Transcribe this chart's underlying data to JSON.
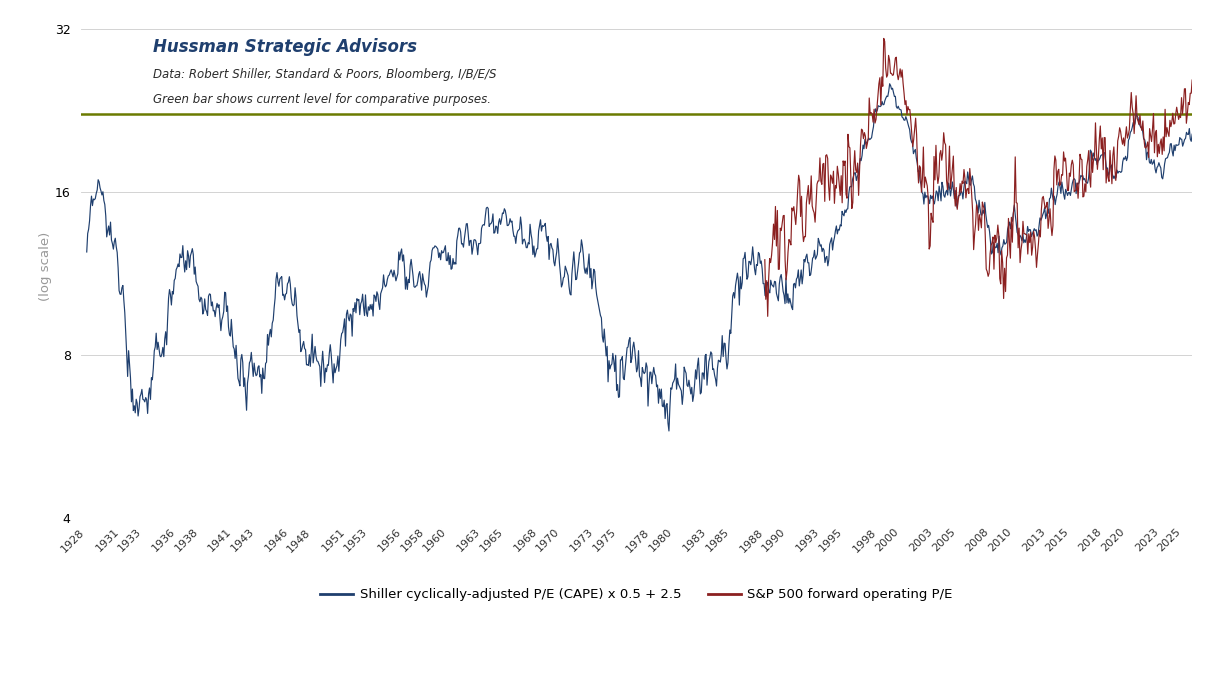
{
  "title_main": "Hussman Strategic Advisors",
  "title_sub1": "Data: Robert Shiller, Standard & Poors, Bloomberg, I/B/E/S",
  "title_sub2": "Green bar shows current level for comparative purposes.",
  "ylabel": "(log scale)",
  "ylim_log": [
    4.0,
    34.0
  ],
  "yticks": [
    4,
    8,
    16,
    32
  ],
  "xlim": [
    1927.5,
    2025.8
  ],
  "xticks": [
    1928,
    1931,
    1933,
    1936,
    1938,
    1941,
    1943,
    1946,
    1948,
    1951,
    1953,
    1956,
    1958,
    1960,
    1963,
    1965,
    1968,
    1970,
    1973,
    1975,
    1978,
    1980,
    1983,
    1985,
    1988,
    1990,
    1993,
    1995,
    1998,
    2000,
    2003,
    2005,
    2008,
    2010,
    2013,
    2015,
    2018,
    2020,
    2023,
    2025
  ],
  "green_line_y": 22.3,
  "green_line_x_start": 1927.5,
  "green_line_x_end": 2025.8,
  "cape_color": "#1F3F6E",
  "fpe_color": "#8B2020",
  "green_color": "#6B7B00",
  "bg_color": "#FFFFFF",
  "legend1": "Shiller cyclically-adjusted P/E (CAPE) x 0.5 + 2.5",
  "legend2": "S&P 500 forward operating P/E",
  "title_color": "#1F3F6E",
  "subtitle_color": "#2B2B2B",
  "fpe_start_year": 1988.0,
  "cape_annual": {
    "1928": 19.8,
    "1929": 27.1,
    "1930": 22.3,
    "1931": 16.7,
    "1932": 9.3,
    "1933": 8.7,
    "1934": 11.5,
    "1935": 12.5,
    "1936": 16.9,
    "1937": 19.0,
    "1938": 13.7,
    "1939": 14.4,
    "1940": 14.3,
    "1941": 12.0,
    "1942": 9.0,
    "1943": 10.6,
    "1944": 12.5,
    "1945": 15.5,
    "1946": 16.3,
    "1947": 12.2,
    "1948": 11.5,
    "1949": 10.5,
    "1950": 11.5,
    "1951": 14.0,
    "1952": 14.0,
    "1953": 13.5,
    "1954": 16.5,
    "1955": 18.5,
    "1956": 19.0,
    "1957": 17.5,
    "1958": 17.5,
    "1959": 20.5,
    "1960": 19.5,
    "1961": 22.5,
    "1962": 20.5,
    "1963": 21.5,
    "1964": 23.5,
    "1965": 24.0,
    "1966": 22.0,
    "1967": 21.5,
    "1968": 22.0,
    "1969": 20.5,
    "1970": 17.0,
    "1971": 18.5,
    "1972": 19.5,
    "1973": 17.5,
    "1974": 11.0,
    "1975": 10.0,
    "1976": 11.5,
    "1977": 11.0,
    "1978": 10.5,
    "1979": 9.5,
    "1980": 9.0,
    "1981": 9.5,
    "1982": 8.5,
    "1983": 10.5,
    "1984": 11.5,
    "1985": 14.0,
    "1986": 17.5,
    "1987": 20.0,
    "1988": 15.5,
    "1989": 17.5,
    "1990": 16.0,
    "1991": 17.5,
    "1992": 18.5,
    "1993": 20.5,
    "1994": 20.5,
    "1995": 25.0,
    "1996": 29.0,
    "1997": 34.0,
    "1998": 39.5,
    "1999": 43.5,
    "2000": 43.0,
    "2001": 35.0,
    "2002": 27.5,
    "2003": 26.5,
    "2004": 27.5,
    "2005": 27.0,
    "2006": 27.5,
    "2007": 25.5,
    "2008": 19.5,
    "2009": 19.5,
    "2010": 22.5,
    "2011": 21.0,
    "2012": 22.0,
    "2013": 25.0,
    "2014": 27.5,
    "2015": 27.5,
    "2016": 27.0,
    "2017": 31.5,
    "2018": 32.5,
    "2019": 29.5,
    "2020": 33.5,
    "2021": 39.5,
    "2022": 29.5,
    "2023": 30.0,
    "2024": 33.5,
    "2025": 35.0
  },
  "fpe_annual": {
    "1988": 12.0,
    "1989": 13.0,
    "1990": 12.5,
    "1991": 15.0,
    "1992": 15.5,
    "1993": 16.5,
    "1994": 16.0,
    "1995": 17.5,
    "1996": 18.0,
    "1997": 21.0,
    "1998": 24.0,
    "1999": 25.5,
    "2000": 27.5,
    "2001": 21.0,
    "2002": 16.5,
    "2003": 17.5,
    "2004": 18.0,
    "2005": 16.5,
    "2006": 16.0,
    "2007": 15.0,
    "2008": 11.5,
    "2009": 13.0,
    "2010": 14.5,
    "2011": 13.0,
    "2012": 13.5,
    "2013": 15.5,
    "2014": 17.0,
    "2015": 17.5,
    "2016": 17.0,
    "2017": 19.0,
    "2018": 19.5,
    "2019": 18.0,
    "2020": 22.5,
    "2021": 21.5,
    "2022": 17.0,
    "2023": 20.0,
    "2024": 22.0,
    "2025": 23.5
  }
}
